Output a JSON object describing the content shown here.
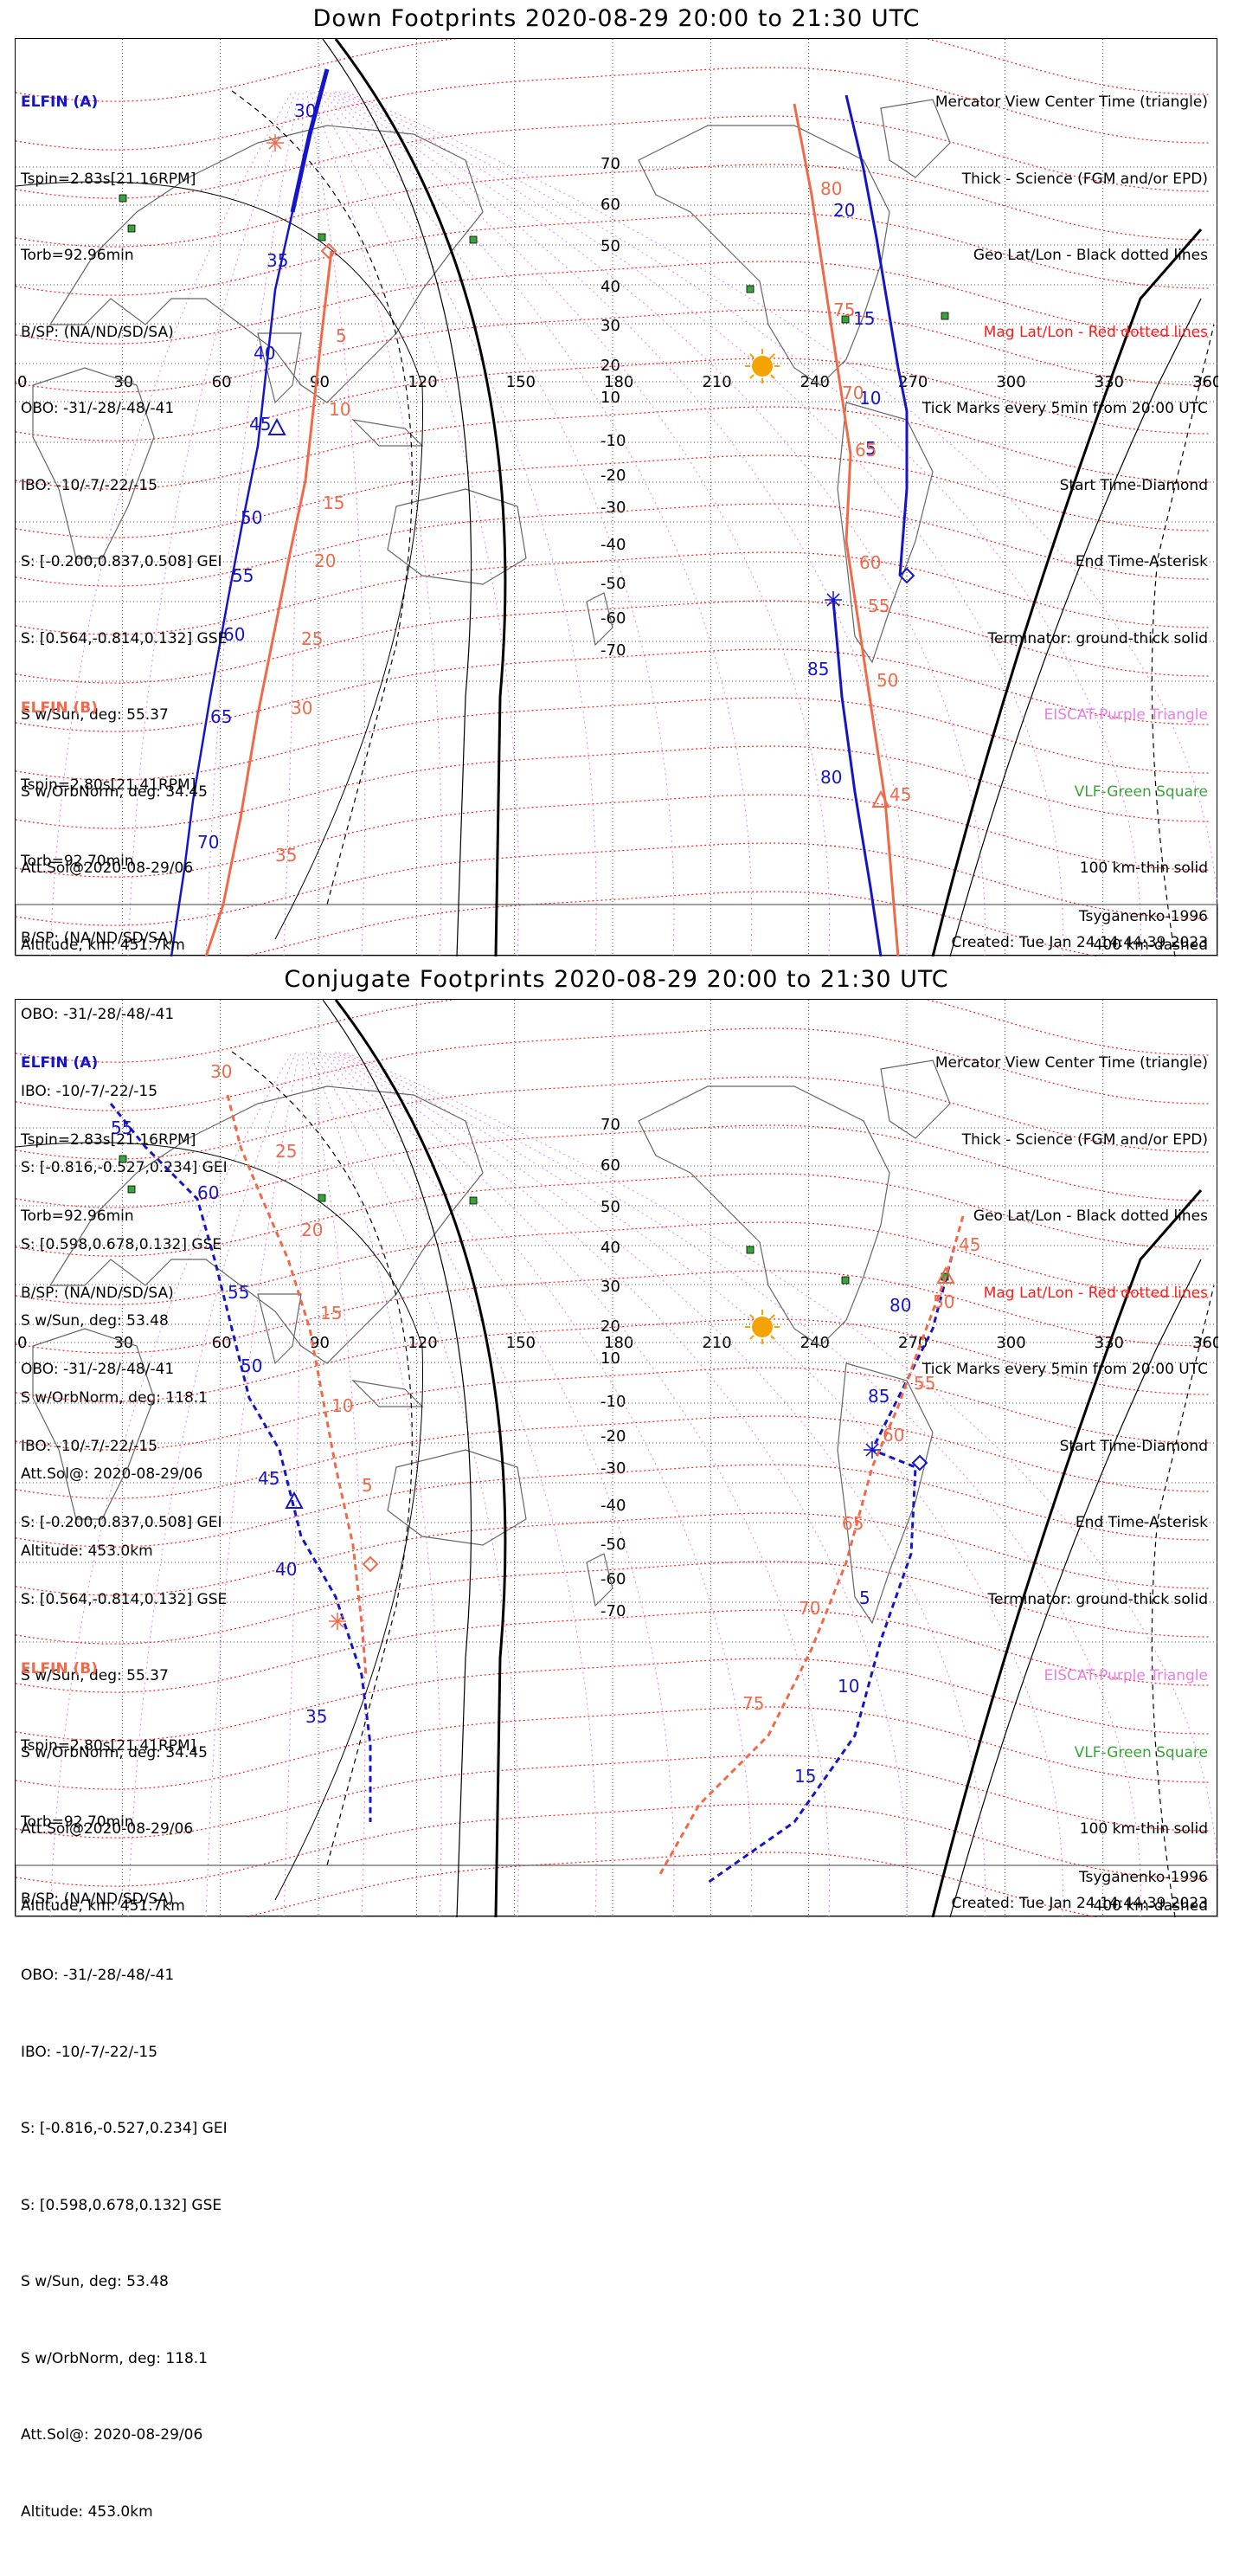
{
  "panels": [
    {
      "title": "Down Footprints 2020-08-29 20:00 to 21:30 UTC",
      "sat_a": {
        "header": "ELFIN (A)",
        "lines": [
          "Tspin=2.83s[21.16RPM]",
          "Torb=92.96min",
          "B/SP: (NA/ND/SD/SA)",
          "OBO: -31/-28/-48/-41",
          "IBO: -10/-7/-22/-15",
          "S: [-0.200,0.837,0.508] GEI",
          "S: [0.564,-0.814,0.132] GSE",
          "S w/Sun, deg: 55.37",
          "S w/OrbNorm, deg: 34.45",
          "Att.Sol@2020-08-29/06",
          "Altitude, km: 451.7km"
        ]
      },
      "sat_b": {
        "header": "ELFIN (B)",
        "lines": [
          "Tspin=2.80s[21.41RPM]",
          "Torb=92.70min",
          "B/SP: (NA/ND/SD/SA)",
          "OBO: -31/-28/-48/-41",
          "IBO: -10/-7/-22/-15",
          "S: [-0.816,-0.527,0.234] GEI",
          "S: [0.598,0.678,0.132] GSE",
          "S w/Sun, deg: 53.48",
          "S w/OrbNorm, deg: 118.1",
          "Att.Sol@: 2020-08-29/06",
          "Altitude: 453.0km"
        ]
      },
      "legend": [
        "Mercator View Center Time (triangle)",
        "Thick - Science (FGM and/or EPD)",
        "Geo Lat/Lon - Black dotted lines",
        "Mag Lat/Lon - Red dotted lines",
        "Tick Marks every 5min from 20:00 UTC",
        "Start Time-Diamond",
        "End Time-Asterisk",
        "Terminator: ground-thick solid",
        "EISCAT-Purple Triangle",
        "VLF-Green Square",
        "100 km-thin solid",
        "400 km-dashed"
      ],
      "model": "Tsyganenko-1996",
      "created": "Created: Tue Jan 24 14:44:39 2023",
      "track_a_labels": [
        "30",
        "35",
        "40",
        "45",
        "50",
        "55",
        "60",
        "65",
        "70"
      ],
      "track_a2_labels": [
        "20",
        "15",
        "10",
        "5"
      ],
      "track_a3_labels": [
        "85",
        "80"
      ],
      "track_b_labels": [
        "5",
        "10",
        "15",
        "20",
        "25",
        "30",
        "35"
      ],
      "track_b2_labels": [
        "80",
        "75",
        "70",
        "65",
        "60",
        "55",
        "50",
        "45"
      ]
    },
    {
      "title": "Conjugate Footprints 2020-08-29 20:00 to 21:30 UTC",
      "sat_a": {
        "header": "ELFIN (A)",
        "lines": [
          "Tspin=2.83s[21.16RPM]",
          "Torb=92.96min",
          "B/SP: (NA/ND/SD/SA)",
          "OBO: -31/-28/-48/-41",
          "IBO: -10/-7/-22/-15",
          "S: [-0.200,0.837,0.508] GEI",
          "S: [0.564,-0.814,0.132] GSE",
          "S w/Sun, deg: 55.37",
          "S w/OrbNorm, deg: 34.45",
          "Att.Sol@2020-08-29/06",
          "Altitude, km: 451.7km"
        ]
      },
      "sat_b": {
        "header": "ELFIN (B)",
        "lines": [
          "Tspin=2.80s[21.41RPM]",
          "Torb=92.70min",
          "B/SP: (NA/ND/SD/SA)",
          "OBO: -31/-28/-48/-41",
          "IBO: -10/-7/-22/-15",
          "S: [-0.816,-0.527,0.234] GEI",
          "S: [0.598,0.678,0.132] GSE",
          "S w/Sun, deg: 53.48",
          "S w/OrbNorm, deg: 118.1",
          "Att.Sol@: 2020-08-29/06",
          "Altitude: 453.0km"
        ]
      },
      "legend": [
        "Mercator View Center Time (triangle)",
        "Thick - Science (FGM and/or EPD)",
        "Geo Lat/Lon - Black dotted lines",
        "Mag Lat/Lon - Red dotted lines",
        "Tick Marks every 5min from 20:00 UTC",
        "Start Time-Diamond",
        "End Time-Asterisk",
        "Terminator: ground-thick solid",
        "EISCAT-Purple Triangle",
        "VLF-Green Square",
        "100 km-thin solid",
        "400 km-dashed"
      ],
      "model": "Tsyganenko-1996",
      "created": "Created: Tue Jan 24 14:44:39 2023",
      "track_a_labels": [
        "55",
        "60",
        "55",
        "50",
        "45",
        "40",
        "35"
      ],
      "track_a2_labels": [
        "80",
        "85",
        "5",
        "10",
        "15"
      ],
      "track_b_labels": [
        "30",
        "25",
        "20",
        "15",
        "10",
        "5"
      ],
      "track_b2_labels": [
        "45",
        "50",
        "55",
        "60",
        "65",
        "70",
        "75"
      ]
    }
  ],
  "lon_ticks": [
    "0",
    "30",
    "60",
    "90",
    "120",
    "150",
    "180",
    "210",
    "240",
    "270",
    "300",
    "330",
    "360"
  ],
  "lat_ticks": [
    "70",
    "60",
    "50",
    "40",
    "30",
    "20",
    "10",
    "-10",
    "-20",
    "-30",
    "-40",
    "-50",
    "-60",
    "-70"
  ],
  "colors": {
    "sat_a": "#1515c8",
    "sat_b": "#f06a4a",
    "mag_grid": "#ff1a1a",
    "geo_grid": "#555555",
    "eiscat": "#e87ee8",
    "vlf": "#3aa43a",
    "sun": "#f5a300"
  }
}
